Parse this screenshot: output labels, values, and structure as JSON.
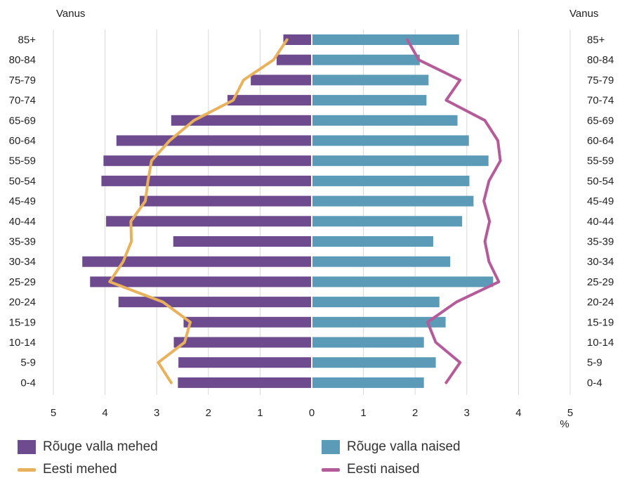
{
  "chart_data": {
    "type": "bar",
    "subtype": "population-pyramid",
    "left_axis_title": "Vanus",
    "right_axis_title": "Vanus",
    "x_unit_label": "%",
    "x_tick_labels": [
      "5",
      "4",
      "3",
      "2",
      "1",
      "0",
      "1",
      "2",
      "3",
      "4",
      "5"
    ],
    "xlim": [
      -5,
      5
    ],
    "grid": "vertical",
    "categories": [
      "85+",
      "80-84",
      "75-79",
      "70-74",
      "65-69",
      "60-64",
      "55-59",
      "50-54",
      "45-49",
      "40-44",
      "35-39",
      "30-34",
      "25-29",
      "20-24",
      "15-19",
      "10-14",
      "5-9",
      "0-4"
    ],
    "series": [
      {
        "name": "Rõuge valla mehed",
        "type": "bar",
        "side": "left",
        "color": "#6e4a8e",
        "values": [
          0.55,
          0.68,
          1.18,
          1.63,
          2.72,
          3.78,
          4.03,
          4.07,
          3.33,
          3.98,
          2.68,
          4.44,
          4.29,
          3.74,
          2.48,
          2.67,
          2.58,
          2.59
        ]
      },
      {
        "name": "Rõuge valla naised",
        "type": "bar",
        "side": "right",
        "color": "#5b9bb8",
        "values": [
          2.85,
          2.09,
          2.26,
          2.22,
          2.82,
          3.04,
          3.42,
          3.05,
          3.13,
          2.91,
          2.35,
          2.68,
          3.51,
          2.47,
          2.59,
          2.17,
          2.4,
          2.17
        ]
      },
      {
        "name": "Eesti mehed",
        "type": "line",
        "side": "left",
        "color": "#e8b15c",
        "values": [
          0.48,
          0.74,
          1.32,
          1.52,
          2.28,
          2.75,
          3.1,
          3.17,
          3.22,
          3.5,
          3.49,
          3.65,
          3.91,
          2.88,
          2.35,
          2.46,
          2.97,
          2.72
        ]
      },
      {
        "name": "Eesti naised",
        "type": "line",
        "side": "right",
        "color": "#b45c9a",
        "values": [
          1.85,
          2.07,
          2.87,
          2.6,
          3.35,
          3.6,
          3.65,
          3.43,
          3.33,
          3.44,
          3.35,
          3.43,
          3.62,
          2.8,
          2.24,
          2.4,
          2.87,
          2.6
        ]
      }
    ],
    "legend": {
      "placement": "bottom",
      "items": [
        "Rõuge valla mehed",
        "Rõuge valla naised",
        "Eesti mehed",
        "Eesti naised"
      ]
    }
  }
}
